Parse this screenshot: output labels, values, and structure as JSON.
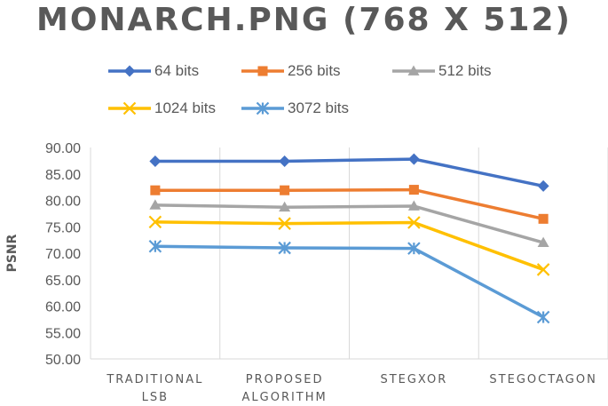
{
  "chart_data": {
    "type": "line",
    "title": "MONARCH.PNG (768 X 512)",
    "xlabel": "",
    "ylabel": "PSNR",
    "categories": [
      [
        "TRADITIONAL",
        "LSB"
      ],
      [
        "PROPOSED",
        "ALGORITHM"
      ],
      [
        "STEGXOR"
      ],
      [
        "STEGOCTAGON"
      ]
    ],
    "ylim": [
      50,
      90
    ],
    "yticks": [
      "50.00",
      "55.00",
      "60.00",
      "65.00",
      "70.00",
      "75.00",
      "80.00",
      "85.00",
      "90.00"
    ],
    "grid": "vertical",
    "legend_position": "top",
    "series": [
      {
        "name": "64 bits",
        "color": "#4472C4",
        "marker": "diamond",
        "values": [
          87.4,
          87.4,
          87.8,
          82.7
        ]
      },
      {
        "name": "256 bits",
        "color": "#ED7D31",
        "marker": "square",
        "values": [
          81.9,
          81.9,
          82.0,
          76.5
        ]
      },
      {
        "name": "512 bits",
        "color": "#A5A5A5",
        "marker": "triangle",
        "values": [
          79.1,
          78.7,
          78.9,
          72.0
        ]
      },
      {
        "name": "1024 bits",
        "color": "#FFC000",
        "marker": "x",
        "values": [
          75.9,
          75.6,
          75.8,
          66.9
        ]
      },
      {
        "name": "3072 bits",
        "color": "#5B9BD5",
        "marker": "star",
        "values": [
          71.3,
          71.0,
          70.9,
          57.9
        ]
      }
    ]
  }
}
